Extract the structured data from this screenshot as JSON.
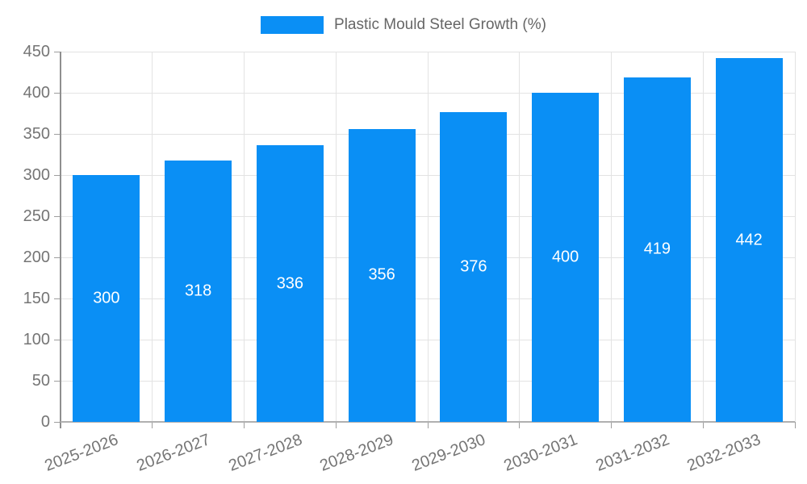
{
  "legend": {
    "label": "Plastic Mould Steel Growth (%)"
  },
  "colors": {
    "bar": "#0a8ff5",
    "grid": "#e3e3e3",
    "axis_y": "#8f8f8f",
    "axis_x": "#b0b0b0",
    "tick": "#9e9e9e",
    "tick_label": "#757575",
    "value_label": "#ffffff",
    "legend_text": "#666666"
  },
  "chart_data": {
    "type": "bar",
    "title": "Plastic Mould Steel Growth (%)",
    "categories": [
      "2025-2026",
      "2026-2027",
      "2027-2028",
      "2028-2029",
      "2029-2030",
      "2030-2031",
      "2031-2032",
      "2032-2033"
    ],
    "values": [
      300,
      318,
      336,
      356,
      376,
      400,
      419,
      442
    ],
    "value_labels": [
      "300",
      "318",
      "336",
      "356",
      "376",
      "400",
      "419",
      "442"
    ],
    "xlabel": "",
    "ylabel": "",
    "ylim": [
      0,
      450
    ],
    "ytick_step": 50,
    "ytick_labels": [
      "0",
      "50",
      "100",
      "150",
      "200",
      "250",
      "300",
      "350",
      "400",
      "450"
    ],
    "grid": true,
    "legend_position": "top",
    "value_labels_shown": true,
    "xlabel_rotation_deg": -21
  }
}
